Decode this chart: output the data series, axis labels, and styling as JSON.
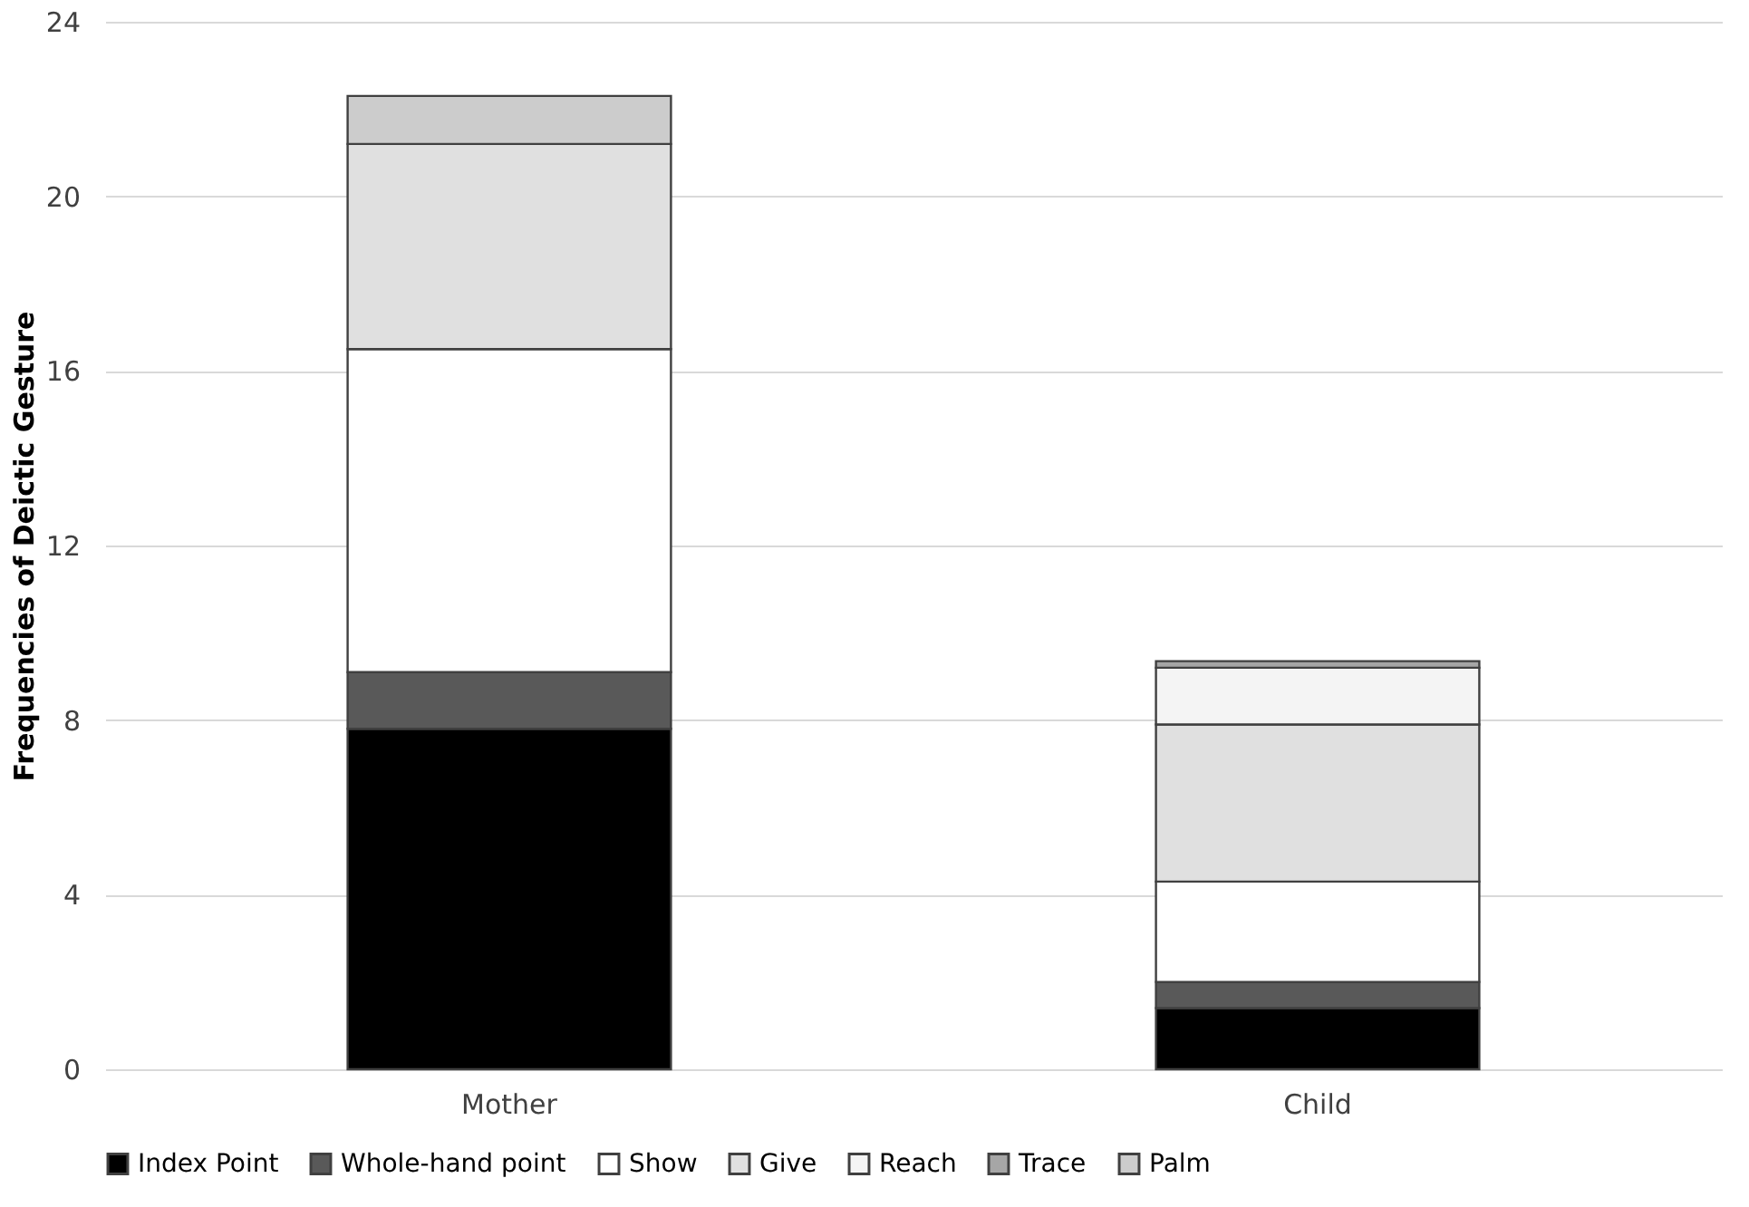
{
  "chart_data": {
    "type": "bar",
    "stacked": true,
    "ylabel": "Frequencies of Deictic Gesture",
    "categories": [
      "Mother",
      "Child"
    ],
    "series": [
      {
        "name": "Index Point",
        "color": "#000000",
        "values": [
          7.8,
          1.4
        ]
      },
      {
        "name": "Whole-hand point",
        "color": "#595959",
        "values": [
          1.3,
          0.6
        ]
      },
      {
        "name": "Show",
        "color": "#ffffff",
        "values": [
          7.4,
          2.3
        ]
      },
      {
        "name": "Give",
        "color": "#e0e0e0",
        "values": [
          4.7,
          3.6
        ]
      },
      {
        "name": "Reach",
        "color": "#f4f4f4",
        "values": [
          0,
          1.3
        ]
      },
      {
        "name": "Trace",
        "color": "#a6a6a6",
        "values": [
          0,
          0.15
        ]
      },
      {
        "name": "Palm",
        "color": "#cccccc",
        "values": [
          1.1,
          0
        ]
      }
    ],
    "ylim": [
      0,
      24
    ],
    "yticks": [
      0,
      4,
      8,
      12,
      16,
      20,
      24
    ],
    "grid": "y",
    "legend": "bottom"
  }
}
